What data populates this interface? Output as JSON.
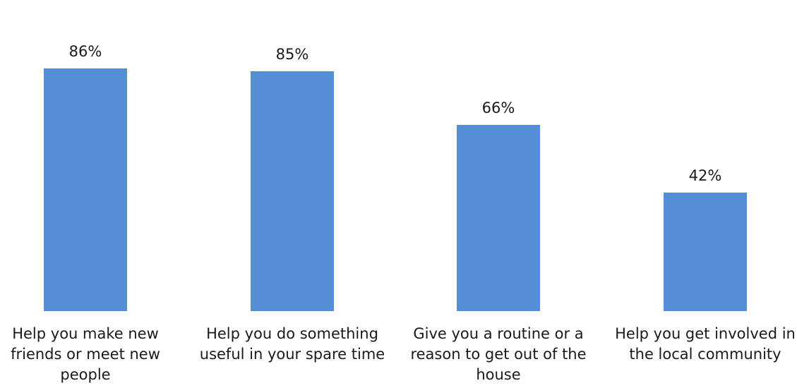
{
  "chart_data": {
    "type": "bar",
    "title": "",
    "xlabel": "",
    "ylabel": "",
    "ylim": [
      0,
      100
    ],
    "grid": false,
    "legend": "none",
    "colors": {
      "bar": "#558ed5",
      "text": "#1a1a1a",
      "background": "#ffffff"
    },
    "categories": [
      [
        "Help you make new",
        "friends or meet new",
        "people"
      ],
      [
        "Help you do something",
        "useful in your spare time"
      ],
      [
        "Give you a routine or a",
        "reason to get out of the",
        "house"
      ],
      [
        "Help you get involved in",
        "the local community"
      ]
    ],
    "values": [
      86,
      85,
      66,
      42
    ],
    "value_labels": [
      "86%",
      "85%",
      "66%",
      "42%"
    ]
  }
}
